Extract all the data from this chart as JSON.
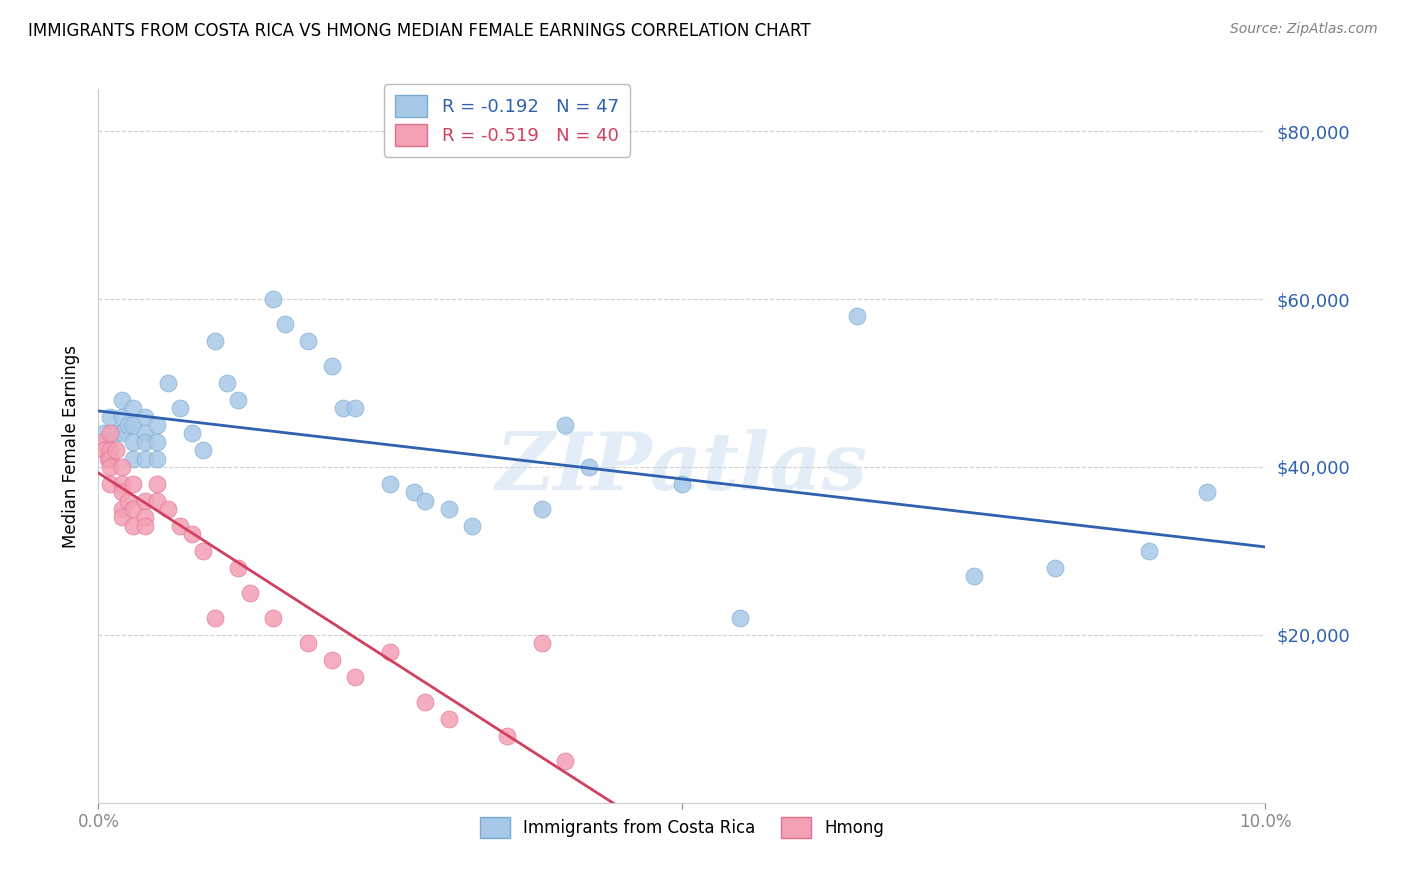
{
  "title": "IMMIGRANTS FROM COSTA RICA VS HMONG MEDIAN FEMALE EARNINGS CORRELATION CHART",
  "source": "Source: ZipAtlas.com",
  "ylabel": "Median Female Earnings",
  "y_ticks": [
    0,
    20000,
    40000,
    60000,
    80000
  ],
  "y_tick_labels": [
    "",
    "$20,000",
    "$40,000",
    "$60,000",
    "$80,000"
  ],
  "xlim": [
    0.0,
    0.1
  ],
  "ylim": [
    0,
    85000
  ],
  "watermark": "ZIPatlas",
  "legend_label_1": "Immigrants from Costa Rica",
  "legend_label_2": "Hmong",
  "blue_color": "#a8c8e8",
  "pink_color": "#f4a0b4",
  "blue_line_color": "#3060b0",
  "pink_line_color": "#d04060",
  "blue_dot_edge": "#7aaacf",
  "pink_dot_edge": "#e07090",
  "costa_rica_x": [
    0.0005,
    0.001,
    0.001,
    0.0015,
    0.002,
    0.002,
    0.002,
    0.0025,
    0.003,
    0.003,
    0.003,
    0.003,
    0.004,
    0.004,
    0.004,
    0.004,
    0.005,
    0.005,
    0.005,
    0.006,
    0.007,
    0.008,
    0.009,
    0.01,
    0.011,
    0.012,
    0.015,
    0.016,
    0.018,
    0.02,
    0.021,
    0.022,
    0.025,
    0.027,
    0.028,
    0.03,
    0.032,
    0.038,
    0.04,
    0.042,
    0.05,
    0.055,
    0.065,
    0.075,
    0.082,
    0.09,
    0.095
  ],
  "costa_rica_y": [
    44000,
    46000,
    42000,
    44000,
    48000,
    46000,
    44000,
    45000,
    47000,
    45000,
    43000,
    41000,
    46000,
    44000,
    43000,
    41000,
    45000,
    43000,
    41000,
    50000,
    47000,
    44000,
    42000,
    55000,
    50000,
    48000,
    60000,
    57000,
    55000,
    52000,
    47000,
    47000,
    38000,
    37000,
    36000,
    35000,
    33000,
    35000,
    45000,
    40000,
    38000,
    22000,
    58000,
    27000,
    28000,
    30000,
    37000
  ],
  "hmong_x": [
    0.0003,
    0.0005,
    0.0008,
    0.001,
    0.001,
    0.001,
    0.001,
    0.001,
    0.0015,
    0.002,
    0.002,
    0.002,
    0.002,
    0.002,
    0.0025,
    0.003,
    0.003,
    0.003,
    0.004,
    0.004,
    0.004,
    0.005,
    0.005,
    0.006,
    0.007,
    0.008,
    0.009,
    0.01,
    0.012,
    0.013,
    0.015,
    0.018,
    0.02,
    0.022,
    0.025,
    0.028,
    0.03,
    0.035,
    0.038,
    0.04
  ],
  "hmong_y": [
    43000,
    42000,
    41000,
    44000,
    42000,
    41000,
    40000,
    38000,
    42000,
    40000,
    38000,
    37000,
    35000,
    34000,
    36000,
    38000,
    35000,
    33000,
    36000,
    34000,
    33000,
    38000,
    36000,
    35000,
    33000,
    32000,
    30000,
    22000,
    28000,
    25000,
    22000,
    19000,
    17000,
    15000,
    18000,
    12000,
    10000,
    8000,
    19000,
    5000
  ]
}
